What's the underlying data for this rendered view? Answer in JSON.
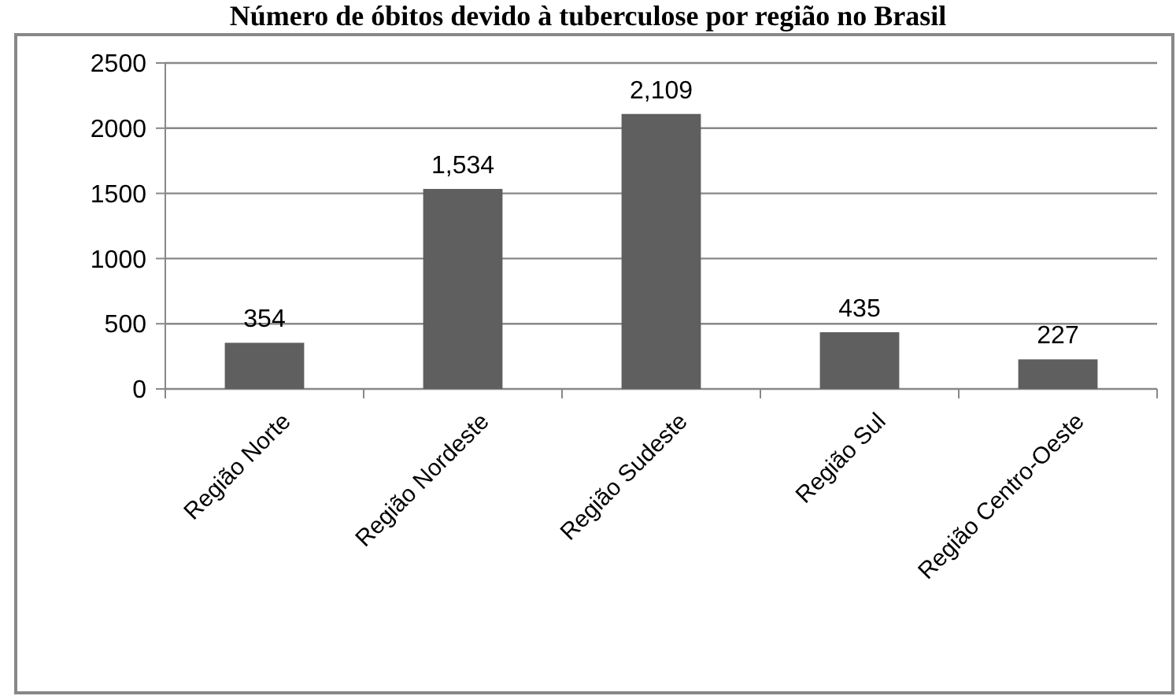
{
  "chart_data": {
    "type": "bar",
    "title": "Número de óbitos devido à tuberculose por região no Brasil",
    "categories": [
      "Região Norte",
      "Região Nordeste",
      "Região Sudeste",
      "Região Sul",
      "Região Centro-Oeste"
    ],
    "values": [
      354,
      1534,
      2109,
      435,
      227
    ],
    "value_labels": [
      "354",
      "1,534",
      "2,109",
      "435",
      "227"
    ],
    "color": "#5f5f5f",
    "ylim": [
      0,
      2500
    ],
    "yticks": [
      0,
      500,
      1000,
      1500,
      2000,
      2500
    ],
    "grid": "y"
  }
}
